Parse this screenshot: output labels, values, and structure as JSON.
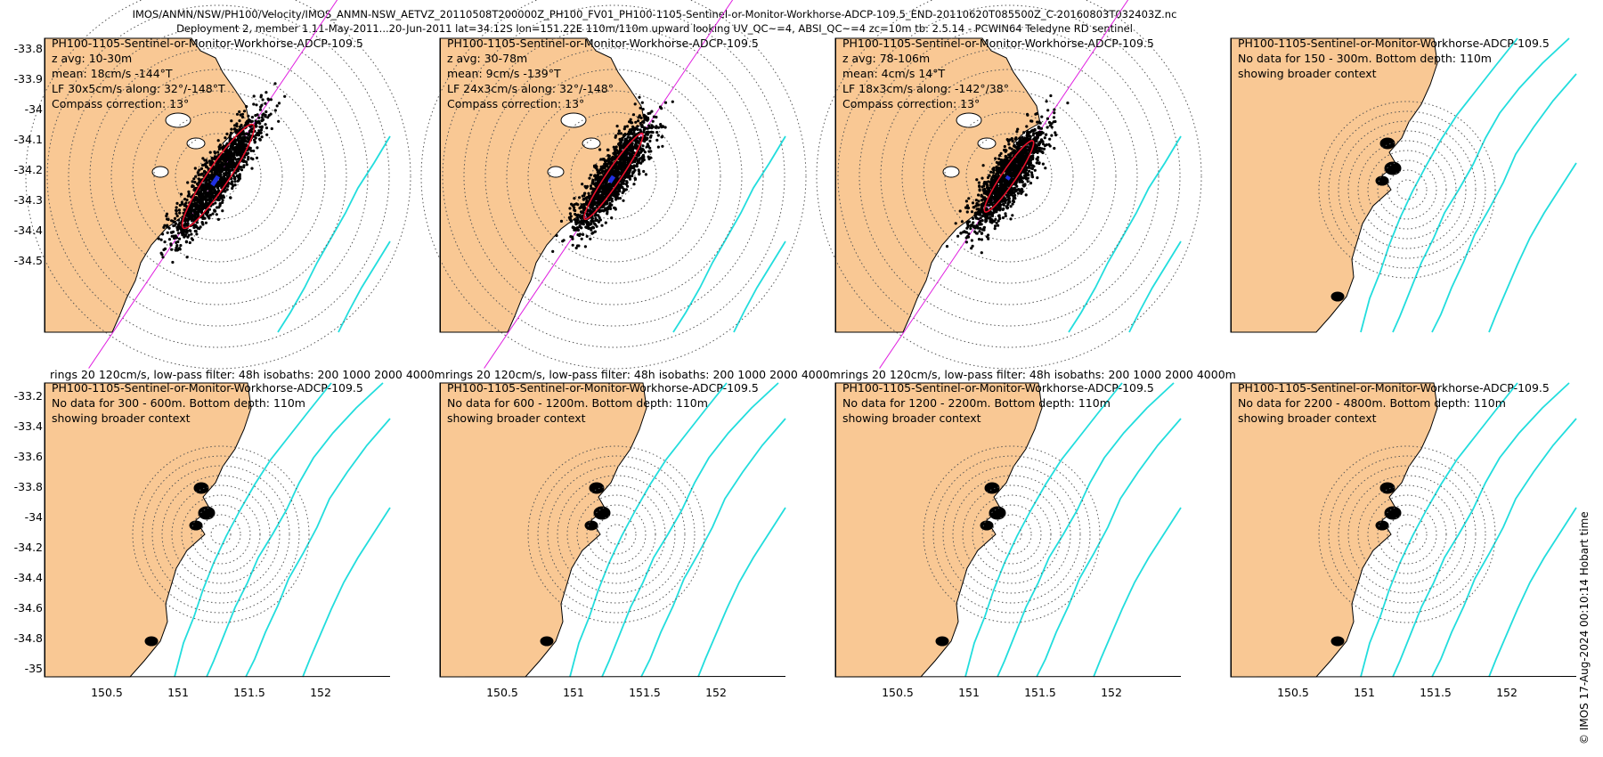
{
  "header": {
    "line1": "IMOS/ANMN/NSW/PH100/Velocity/IMOS_ANMN-NSW_AETVZ_20110508T200000Z_PH100_FV01_PH100-1105-Sentinel-or-Monitor-Workhorse-ADCP-109.5_END-20110620T085500Z_C-20160803T032403Z.nc",
    "line2": "Deployment 2, member 1 11-May-2011...20-Jun-2011 lat=34.12S lon=151.22E 110m/110m upward looking UV_QC~=4, ABSI_QC~=4 zc=10m tb: 2.5.14 - PCWIN64 Teledyne RD sentinel"
  },
  "colors": {
    "land": "#f9c894",
    "isobath": "#22dddd",
    "ellipse": "#e8102a",
    "major_axis": "#e020e0",
    "scatter": "#000000",
    "mean": "#1f2fe0"
  },
  "rings_note": "rings 20 120cm/s, low-pass filter: 48h isobaths: 200 1000 2000 4000m",
  "top_panels": [
    {
      "title": "PH100-1105-Sentinel-or-Monitor-Workhorse-ADCP-109.5",
      "lines": [
        "z avg: 10-30m",
        "mean: 18cm/s -144°T",
        "LF 30x5cm/s along: 32°/-148°T",
        "Compass correction: 13°"
      ]
    },
    {
      "title": "PH100-1105-Sentinel-or-Monitor-Workhorse-ADCP-109.5",
      "lines": [
        "z avg: 30-78m",
        "mean: 9cm/s -139°T",
        "LF 24x3cm/s along: 32°/-148°",
        "Compass correction: 13°"
      ]
    },
    {
      "title": "PH100-1105-Sentinel-or-Monitor-Workhorse-ADCP-109.5",
      "lines": [
        "z avg: 78-106m",
        "mean: 4cm/s 14°T",
        "LF 18x3cm/s along: -142°/38°",
        "Compass correction: 13°"
      ]
    },
    {
      "title": "PH100-1105-Sentinel-or-Monitor-Workhorse-ADCP-109.5",
      "lines": [
        "No data for 150 - 300m. Bottom depth: 110m",
        "showing broader context"
      ]
    }
  ],
  "bottom_panels": [
    {
      "title": "PH100-1105-Sentinel-or-Monitor-Workhorse-ADCP-109.5",
      "lines": [
        "No data for 300 - 600m. Bottom depth: 110m",
        "showing broader context"
      ]
    },
    {
      "title": "PH100-1105-Sentinel-or-Monitor-Workhorse-ADCP-109.5",
      "lines": [
        "No data for 600 - 1200m. Bottom depth: 110m",
        "showing broader context"
      ]
    },
    {
      "title": "PH100-1105-Sentinel-or-Monitor-Workhorse-ADCP-109.5",
      "lines": [
        "No data for 1200 - 2200m. Bottom depth: 110m",
        "showing broader context"
      ]
    },
    {
      "title": "PH100-1105-Sentinel-or-Monitor-Workhorse-ADCP-109.5",
      "lines": [
        "No data for 2200 - 4800m. Bottom depth: 110m",
        "showing broader context"
      ]
    }
  ],
  "axes": {
    "top_yticks": [
      "-33.8",
      "-33.9",
      "-34",
      "-34.1",
      "-34.2",
      "-34.3",
      "-34.4",
      "-34.5"
    ],
    "bottom_yticks": [
      "-33.2",
      "-33.4",
      "-33.6",
      "-33.8",
      "-34",
      "-34.2",
      "-34.4",
      "-34.6",
      "-34.8",
      "-35"
    ],
    "xticks": [
      "150.5",
      "151",
      "151.5",
      "152"
    ]
  },
  "footer": "© IMOS 17-Aug-2024 00:10:14 Hobart time"
}
